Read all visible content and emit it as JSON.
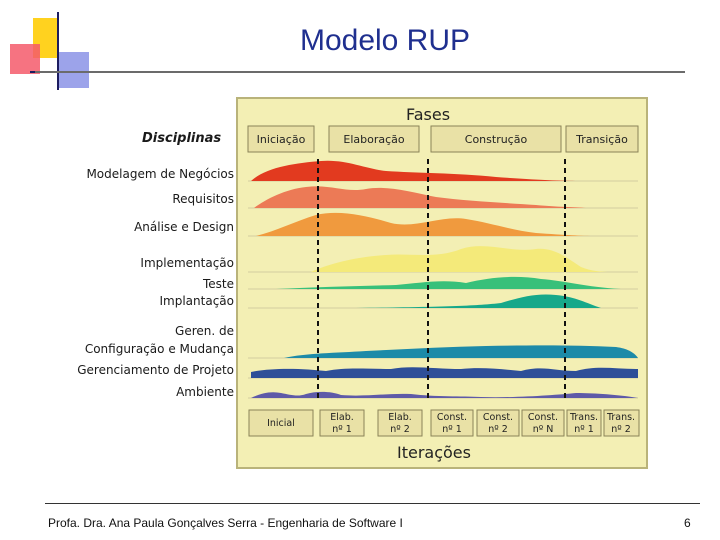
{
  "slide": {
    "title": "Modelo RUP",
    "footer": "Profa. Dra. Ana Paula Gonçalves Serra - Engenharia de Software I",
    "page_number": "6"
  },
  "diagram": {
    "phases_title": "Fases",
    "disciplines_title": "Disciplinas",
    "phases": [
      "Iniciação",
      "Elaboração",
      "Construção",
      "Transição"
    ],
    "disciplines": [
      "Modelagem de Negócios",
      "Requisitos",
      "Análise e Design",
      "Implementação",
      "Teste",
      "Implantação",
      "Geren. de",
      "Configuração e Mudança",
      "Gerenciamento de Projeto",
      "Ambiente"
    ],
    "iterations_title": "Iterações",
    "iterations": [
      [
        "Inicial"
      ],
      [
        "Elab.",
        "nº 1"
      ],
      [
        "Elab.",
        "nº 2"
      ],
      [
        "Const.",
        "nº 1"
      ],
      [
        "Const.",
        "nº 2"
      ],
      [
        "Const.",
        "nº N"
      ],
      [
        "Trans.",
        "nº 1"
      ],
      [
        "Trans.",
        "nº 2"
      ]
    ],
    "colors": {
      "panel_bg": "#f3efb4",
      "panel_border": "#b9b37a",
      "box_fill": "#e9e1a6",
      "box_border": "#8a8358",
      "title_color": "#1f2f8f"
    }
  }
}
